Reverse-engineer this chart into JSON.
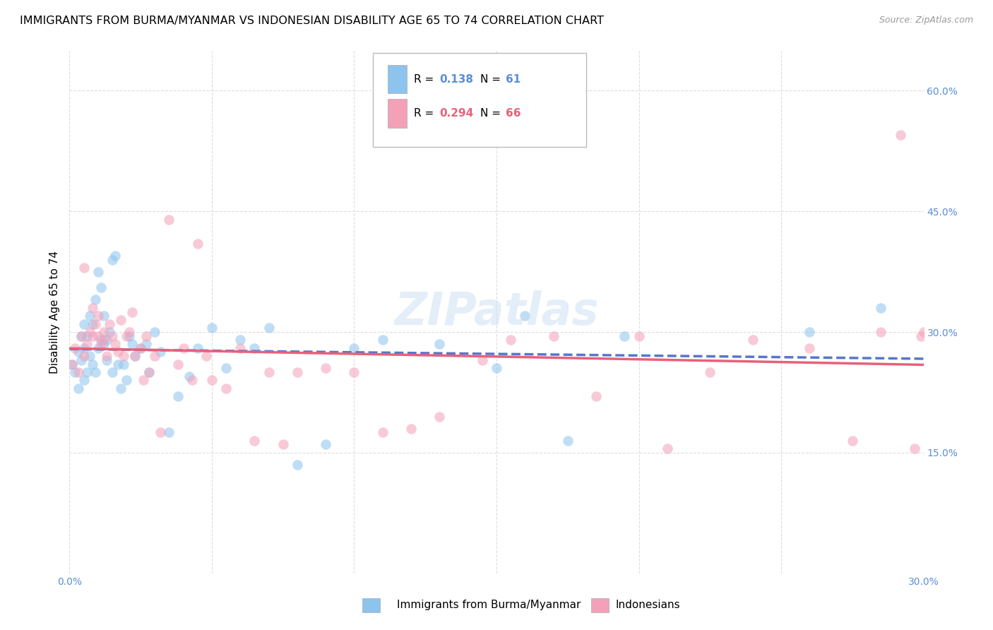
{
  "title": "IMMIGRANTS FROM BURMA/MYANMAR VS INDONESIAN DISABILITY AGE 65 TO 74 CORRELATION CHART",
  "source": "Source: ZipAtlas.com",
  "ylabel": "Disability Age 65 to 74",
  "xlim": [
    0.0,
    0.3
  ],
  "ylim": [
    0.0,
    0.65
  ],
  "x_ticks": [
    0.0,
    0.05,
    0.1,
    0.15,
    0.2,
    0.25,
    0.3
  ],
  "y_ticks": [
    0.0,
    0.15,
    0.3,
    0.45,
    0.6
  ],
  "y_tick_labels_right": [
    "",
    "15.0%",
    "30.0%",
    "45.0%",
    "60.0%"
  ],
  "color_blue": "#8CC4EE",
  "color_pink": "#F4A0B8",
  "color_blue_line": "#5577CC",
  "color_pink_line": "#E8607A",
  "color_blue_text": "#5B8ED6",
  "color_pink_text": "#E8607A",
  "watermark": "ZIPatlas",
  "blue_scatter_x": [
    0.001,
    0.002,
    0.003,
    0.003,
    0.004,
    0.004,
    0.005,
    0.005,
    0.005,
    0.006,
    0.006,
    0.007,
    0.007,
    0.008,
    0.008,
    0.009,
    0.009,
    0.01,
    0.01,
    0.011,
    0.011,
    0.012,
    0.012,
    0.013,
    0.013,
    0.014,
    0.015,
    0.015,
    0.016,
    0.017,
    0.018,
    0.019,
    0.02,
    0.021,
    0.022,
    0.023,
    0.025,
    0.027,
    0.028,
    0.03,
    0.032,
    0.035,
    0.038,
    0.042,
    0.045,
    0.05,
    0.055,
    0.06,
    0.065,
    0.07,
    0.08,
    0.09,
    0.1,
    0.11,
    0.13,
    0.15,
    0.16,
    0.175,
    0.195,
    0.26,
    0.285
  ],
  "blue_scatter_y": [
    0.26,
    0.25,
    0.23,
    0.275,
    0.265,
    0.295,
    0.24,
    0.28,
    0.31,
    0.25,
    0.295,
    0.27,
    0.32,
    0.26,
    0.31,
    0.25,
    0.34,
    0.28,
    0.375,
    0.29,
    0.355,
    0.285,
    0.32,
    0.265,
    0.29,
    0.3,
    0.25,
    0.39,
    0.395,
    0.26,
    0.23,
    0.26,
    0.24,
    0.295,
    0.285,
    0.27,
    0.28,
    0.285,
    0.25,
    0.3,
    0.275,
    0.175,
    0.22,
    0.245,
    0.28,
    0.305,
    0.255,
    0.29,
    0.28,
    0.305,
    0.135,
    0.16,
    0.28,
    0.29,
    0.285,
    0.255,
    0.32,
    0.165,
    0.295,
    0.3,
    0.33
  ],
  "pink_scatter_x": [
    0.001,
    0.002,
    0.003,
    0.004,
    0.005,
    0.005,
    0.006,
    0.007,
    0.008,
    0.008,
    0.009,
    0.01,
    0.01,
    0.011,
    0.012,
    0.012,
    0.013,
    0.014,
    0.015,
    0.016,
    0.017,
    0.018,
    0.019,
    0.02,
    0.021,
    0.022,
    0.023,
    0.025,
    0.026,
    0.027,
    0.028,
    0.03,
    0.032,
    0.035,
    0.038,
    0.04,
    0.043,
    0.045,
    0.048,
    0.05,
    0.055,
    0.06,
    0.065,
    0.07,
    0.075,
    0.08,
    0.09,
    0.1,
    0.11,
    0.12,
    0.13,
    0.145,
    0.155,
    0.17,
    0.185,
    0.2,
    0.21,
    0.225,
    0.24,
    0.26,
    0.275,
    0.285,
    0.292,
    0.297,
    0.299,
    0.3
  ],
  "pink_scatter_y": [
    0.26,
    0.28,
    0.25,
    0.295,
    0.27,
    0.38,
    0.285,
    0.3,
    0.295,
    0.33,
    0.31,
    0.295,
    0.32,
    0.285,
    0.29,
    0.3,
    0.27,
    0.31,
    0.295,
    0.285,
    0.275,
    0.315,
    0.27,
    0.295,
    0.3,
    0.325,
    0.27,
    0.28,
    0.24,
    0.295,
    0.25,
    0.27,
    0.175,
    0.44,
    0.26,
    0.28,
    0.24,
    0.41,
    0.27,
    0.24,
    0.23,
    0.28,
    0.165,
    0.25,
    0.16,
    0.25,
    0.255,
    0.25,
    0.175,
    0.18,
    0.195,
    0.265,
    0.29,
    0.295,
    0.22,
    0.295,
    0.155,
    0.25,
    0.29,
    0.28,
    0.165,
    0.3,
    0.545,
    0.155,
    0.295,
    0.3
  ],
  "grid_color": "#DDDDDD",
  "background_color": "#FFFFFF",
  "title_fontsize": 11.5,
  "axis_label_fontsize": 11,
  "tick_fontsize": 10,
  "scatter_size": 110,
  "scatter_alpha": 0.55,
  "legend_fontsize": 11
}
